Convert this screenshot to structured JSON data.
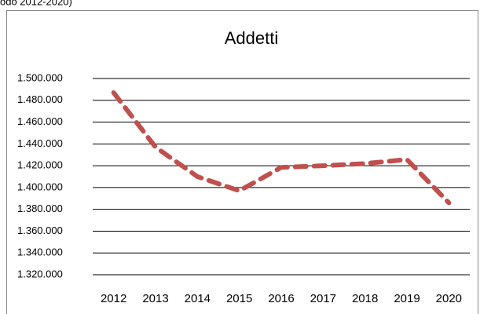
{
  "caption": "odo 2012-2020)",
  "chart_data": {
    "type": "line",
    "title": "Addetti",
    "categories": [
      "2012",
      "2013",
      "2014",
      "2015",
      "2016",
      "2017",
      "2018",
      "2019",
      "2020"
    ],
    "series": [
      {
        "name": "Addetti",
        "color": "#c0504d",
        "values": [
          1487000,
          1437000,
          1410000,
          1397000,
          1418500,
          1420000,
          1422000,
          1425700,
          1386000
        ]
      }
    ],
    "ylim": [
      1320000,
      1500000
    ],
    "yticks": [
      {
        "value": 1320000,
        "label": "1.320.000"
      },
      {
        "value": 1340000,
        "label": "1.340.000"
      },
      {
        "value": 1360000,
        "label": "1.360.000"
      },
      {
        "value": 1380000,
        "label": "1.380.000"
      },
      {
        "value": 1400000,
        "label": "1.400.000"
      },
      {
        "value": 1420000,
        "label": "1.420.000"
      },
      {
        "value": 1440000,
        "label": "1.440.000"
      },
      {
        "value": 1460000,
        "label": "1.460.000"
      },
      {
        "value": 1480000,
        "label": "1.480.000"
      },
      {
        "value": 1500000,
        "label": "1.500.000"
      }
    ],
    "grid": true
  }
}
